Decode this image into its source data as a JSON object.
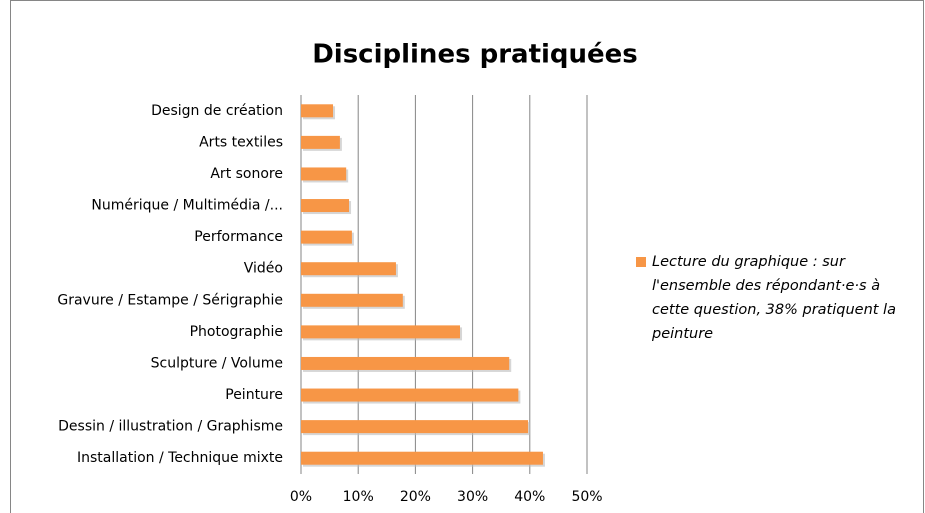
{
  "chart_data": {
    "type": "bar",
    "orientation": "horizontal",
    "title": "Disciplines pratiquées",
    "categories": [
      "Design de création",
      "Arts textiles",
      "Art sonore",
      "Numérique / Multimédia /...",
      "Performance",
      "Vidéo",
      "Gravure / Estampe / Sérigraphie",
      "Photographie",
      "Sculpture / Volume",
      "Peinture",
      "Dessin / illustration / Graphisme",
      "Installation / Technique mixte"
    ],
    "series": [
      {
        "name": "Lecture du graphique : sur l'ensemble des répondant·e·s à cette question, 38% pratiquent la peinture",
        "color": "#f79646",
        "values": [
          5.6,
          6.8,
          7.9,
          8.4,
          8.9,
          16.6,
          17.8,
          27.8,
          36.4,
          38,
          39.7,
          42.3
        ]
      }
    ],
    "xlim": [
      0,
      50
    ],
    "xticks": [
      {
        "value": 0,
        "label": "0%"
      },
      {
        "value": 10,
        "label": "10%"
      },
      {
        "value": 20,
        "label": "20%"
      },
      {
        "value": 30,
        "label": "30%"
      },
      {
        "value": 40,
        "label": "40%"
      },
      {
        "value": 50,
        "label": "50%"
      }
    ],
    "grid": true,
    "legend": "right"
  }
}
